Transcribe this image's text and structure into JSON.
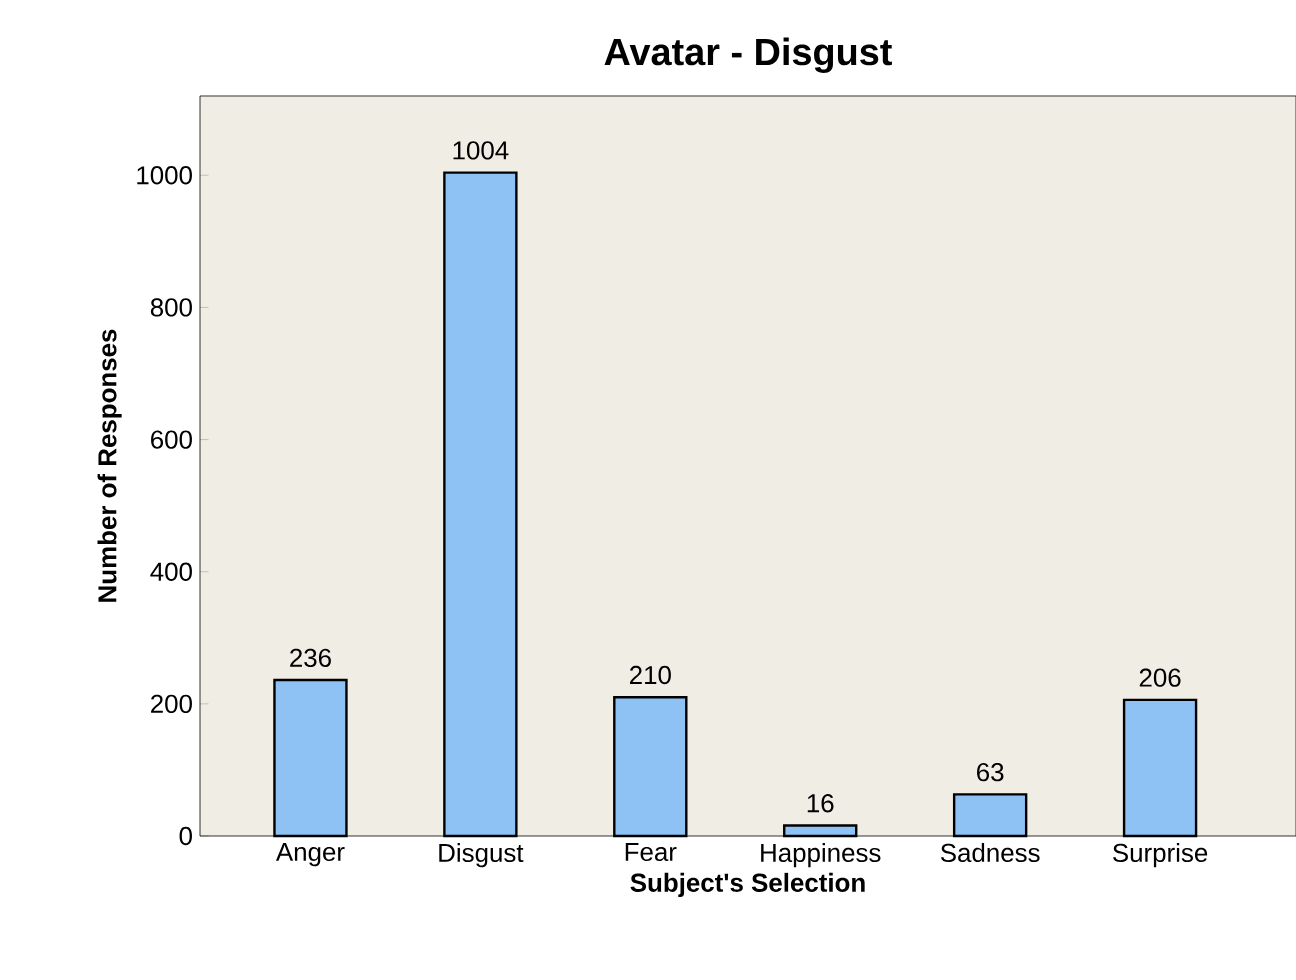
{
  "chart_data": {
    "type": "bar",
    "title": "Avatar - Disgust",
    "xlabel": "Subject's Selection",
    "ylabel": "Number of Responses",
    "categories": [
      "Anger",
      "Disgust",
      "Fear",
      "Happiness",
      "Sadness",
      "Surprise"
    ],
    "values": [
      236,
      1004,
      210,
      16,
      63,
      206
    ],
    "color": "#8ec2f5",
    "ylim": [
      0,
      1120
    ],
    "yticks": [
      0,
      200,
      400,
      600,
      800,
      1000
    ],
    "data_labels": true,
    "grid": false
  }
}
